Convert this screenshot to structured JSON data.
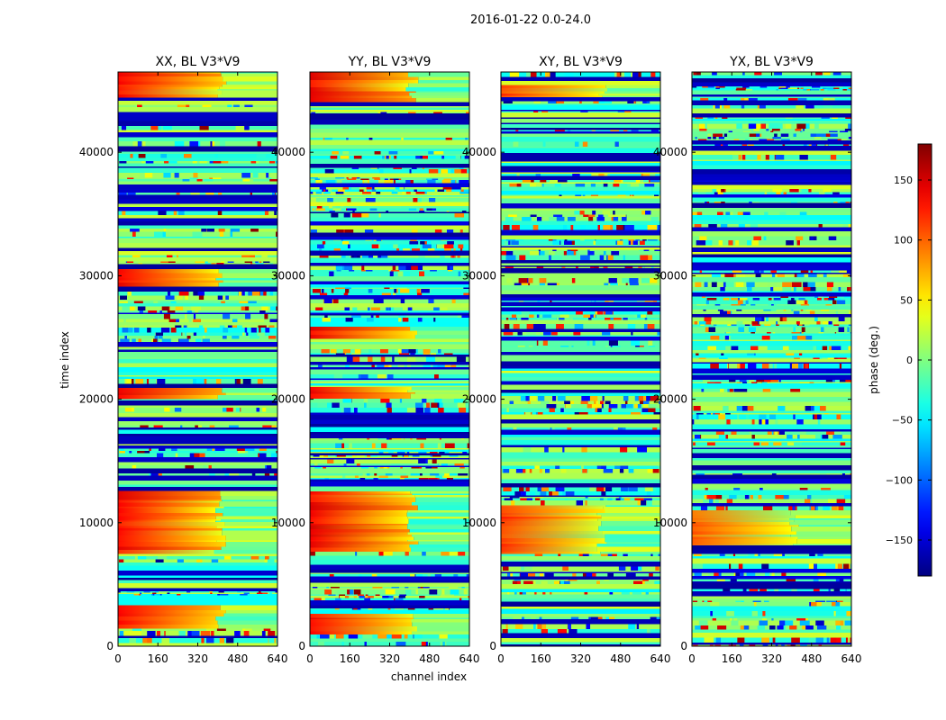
{
  "suptitle": "2016-01-22 0.0-24.0",
  "chart_data": {
    "type": "heatmap",
    "xlabel": "channel index",
    "ylabel": "time index",
    "xlim": [
      0,
      640
    ],
    "ylim": [
      0,
      46500
    ],
    "xticks": [
      0,
      160,
      320,
      480,
      640
    ],
    "yticks": [
      0,
      10000,
      20000,
      30000,
      40000
    ],
    "panels": [
      {
        "title": "XX, BL V3*V9",
        "warm_bias": 0.9,
        "warm_rows": [
          [
            1500,
            3500
          ],
          [
            7500,
            12500
          ],
          [
            20000,
            21000
          ],
          [
            29000,
            30500
          ],
          [
            44500,
            46500
          ]
        ]
      },
      {
        "title": "YY, BL V3*V9",
        "warm_bias": 1.0,
        "warm_rows": [
          [
            1000,
            2500
          ],
          [
            7500,
            12500
          ],
          [
            20000,
            21000
          ],
          [
            25000,
            26000
          ],
          [
            44000,
            46500
          ]
        ]
      },
      {
        "title": "XY, BL V3*V9",
        "warm_bias": 0.5,
        "warm_rows": [
          [
            7500,
            11500
          ],
          [
            44500,
            45500
          ]
        ]
      },
      {
        "title": "YX, BL V3*V9",
        "warm_bias": 0.15,
        "warm_rows": [
          [
            8000,
            11000
          ]
        ]
      }
    ],
    "colorbar": {
      "label": "phase (deg.)",
      "colormap": "jet",
      "range": [
        -180,
        180
      ],
      "ticks": [
        150,
        100,
        50,
        0,
        -50,
        -100,
        -150
      ],
      "tick_labels": [
        "150",
        "100",
        "50",
        "0",
        "−50",
        "−100",
        "−150"
      ]
    }
  }
}
